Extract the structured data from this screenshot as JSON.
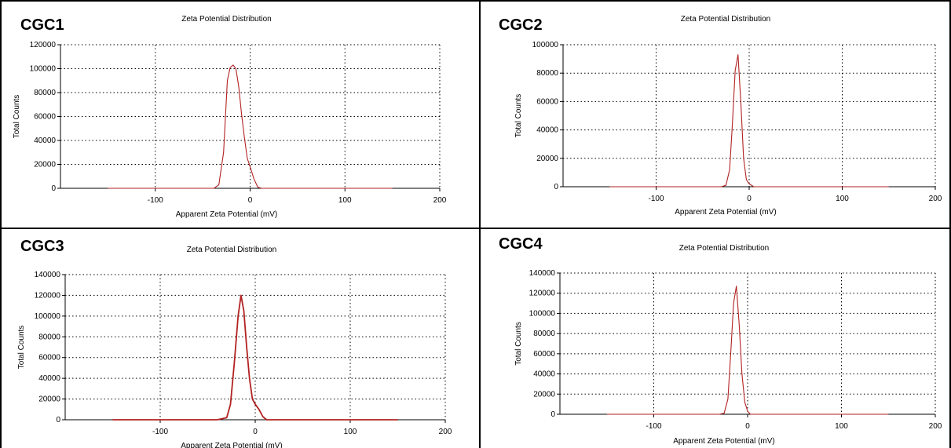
{
  "chart_data": [
    {
      "panel": "CGC1",
      "type": "line",
      "title": "Zeta Potential Distribution",
      "xlabel": "Apparent Zeta Potential (mV)",
      "ylabel": "Total Counts",
      "xlim": [
        -200,
        200
      ],
      "ylim": [
        0,
        120000
      ],
      "xticks": [
        -100,
        0,
        100,
        200
      ],
      "yticks": [
        0,
        20000,
        40000,
        60000,
        80000,
        100000,
        120000
      ],
      "grid": true,
      "line_color": "#b22222",
      "series": [
        {
          "x": [
            -150,
            -50,
            -38,
            -33,
            -28,
            -24,
            -21,
            -18,
            -15,
            -12,
            -9,
            -6,
            -3,
            0,
            4,
            8,
            12,
            20,
            150
          ],
          "values": [
            0,
            0,
            0,
            3000,
            30000,
            90000,
            101000,
            103000,
            100000,
            85000,
            62000,
            42000,
            25000,
            18000,
            8000,
            1000,
            0,
            0,
            0
          ]
        }
      ]
    },
    {
      "panel": "CGC2",
      "type": "line",
      "title": "Zeta Potential Distribution",
      "xlabel": "Apparent Zeta Potential (mV)",
      "ylabel": "Total Counts",
      "xlim": [
        -200,
        200
      ],
      "ylim": [
        0,
        100000
      ],
      "xticks": [
        -100,
        0,
        100,
        200
      ],
      "yticks": [
        0,
        20000,
        40000,
        60000,
        80000,
        100000
      ],
      "grid": true,
      "line_color": "#b22222",
      "series": [
        {
          "x": [
            -150,
            -30,
            -25,
            -21,
            -18,
            -15,
            -12,
            -9,
            -6,
            -3,
            0,
            5,
            150
          ],
          "values": [
            0,
            0,
            1000,
            12000,
            45000,
            82000,
            93000,
            60000,
            20000,
            5000,
            2000,
            0,
            0
          ]
        }
      ]
    },
    {
      "panel": "CGC3",
      "type": "line",
      "title": "Zeta Potential Distribution",
      "xlabel": "Apparent Zeta Potential (mV)",
      "ylabel": "Total Counts",
      "xlim": [
        -200,
        200
      ],
      "ylim": [
        0,
        140000
      ],
      "xticks": [
        -100,
        0,
        100,
        200
      ],
      "yticks": [
        0,
        20000,
        40000,
        60000,
        80000,
        100000,
        120000,
        140000
      ],
      "grid": true,
      "line_color": "#b22222",
      "series": [
        {
          "x": [
            -150,
            -40,
            -30,
            -26,
            -22,
            -18,
            -15,
            -12,
            -9,
            -6,
            -3,
            0,
            4,
            8,
            12,
            150
          ],
          "values": [
            0,
            0,
            2000,
            15000,
            55000,
            100000,
            120000,
            105000,
            70000,
            40000,
            20000,
            15000,
            10000,
            3000,
            0,
            0
          ]
        }
      ]
    },
    {
      "panel": "CGC4",
      "type": "line",
      "title": "Zeta Potential Distribution",
      "xlabel": "Apparent Zeta Potential (mV)",
      "ylabel": "Total Counts",
      "xlim": [
        -200,
        200
      ],
      "ylim": [
        0,
        140000
      ],
      "xticks": [
        -100,
        0,
        100,
        200
      ],
      "yticks": [
        0,
        20000,
        40000,
        60000,
        80000,
        100000,
        120000,
        140000
      ],
      "grid": true,
      "line_color": "#b22222",
      "series": [
        {
          "x": [
            -150,
            -30,
            -25,
            -21,
            -18,
            -15,
            -12,
            -9,
            -6,
            -3,
            0,
            3,
            150
          ],
          "values": [
            0,
            0,
            1000,
            15000,
            60000,
            110000,
            127000,
            90000,
            40000,
            12000,
            3000,
            0,
            0
          ]
        }
      ]
    }
  ]
}
